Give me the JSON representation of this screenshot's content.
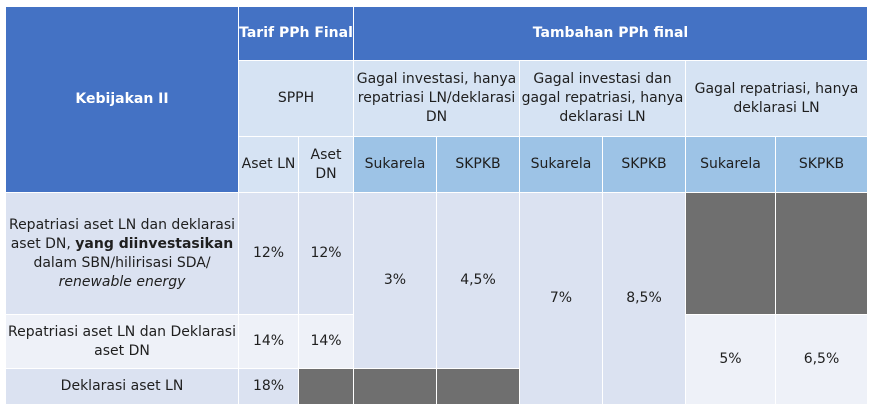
{
  "header": {
    "policy": "Kebijakan II",
    "tarif": "Tarif PPh Final",
    "tambahan": "Tambahan PPh final",
    "spph": "SPPH",
    "group1": "Gagal investasi, hanya repatriasi LN/deklarasi DN",
    "group2": "Gagal investasi dan gagal repatriasi, hanya deklarasi LN",
    "group3": "Gagal repatriasi, hanya deklarasi LN",
    "aset_ln": "Aset LN",
    "aset_dn": "Aset DN",
    "sukarela": "Sukarela",
    "skpkb": "SKPKB"
  },
  "rows": [
    {
      "label_plain1": "Repatriasi aset LN dan deklarasi aset DN, ",
      "label_bold": "yang diinvestasikan",
      "label_plain2": " dalam SBN/hilirisasi SDA/",
      "label_italic": "renewable energy",
      "aset_ln": "12%",
      "aset_dn": "12%",
      "g1_sukarela": "3%",
      "g1_skpkb": "4,5%",
      "g2_sukarela": "7%",
      "g2_skpkb": "8,5%"
    },
    {
      "label": "Repatriasi aset LN dan Deklarasi aset DN",
      "aset_ln": "14%",
      "aset_dn": "14%",
      "g3_sukarela": "5%",
      "g3_skpkb": "6,5%"
    },
    {
      "label": "Deklarasi aset LN",
      "aset_ln": "18%"
    }
  ],
  "colors": {
    "header_blue": "#4472c4",
    "header_light": "#d6e3f3",
    "header_mid": "#9dc3e6",
    "cell": "#dbe2f1",
    "cell_alt": "#eef1f8",
    "unavailable": "#6f6f6f"
  }
}
